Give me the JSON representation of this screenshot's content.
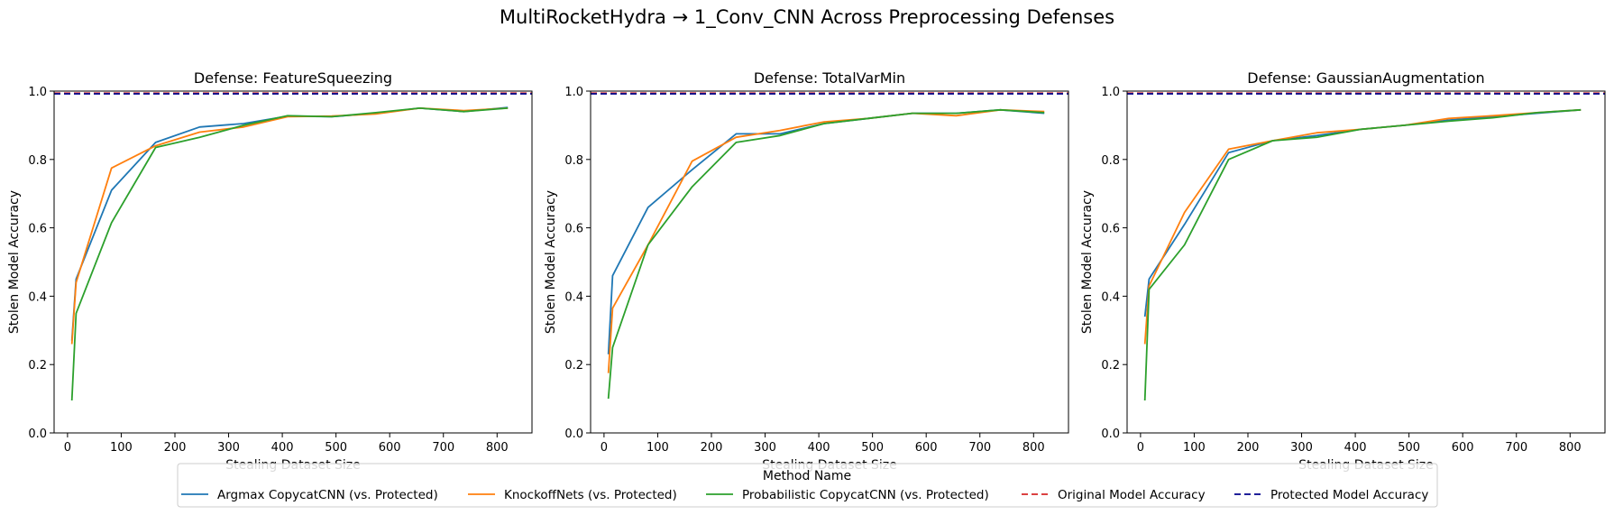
{
  "figure": {
    "title": "MultiRocketHydra → 1_Conv_CNN Across Preprocessing Defenses"
  },
  "legend": {
    "title": "Method Name",
    "entries": [
      {
        "label": "Argmax CopycatCNN (vs. Protected)",
        "color": "#1f77b4",
        "style": "solid"
      },
      {
        "label": "KnockoffNets (vs. Protected)",
        "color": "#ff7f0e",
        "style": "solid"
      },
      {
        "label": "Probabilistic CopycatCNN (vs. Protected)",
        "color": "#2ca02c",
        "style": "solid"
      },
      {
        "label": "Original Model Accuracy",
        "color": "#d62728",
        "style": "dashed"
      },
      {
        "label": "Protected Model Accuracy",
        "color": "#00008b",
        "style": "dashed"
      }
    ]
  },
  "chart_data": [
    {
      "type": "line",
      "title": "Defense: FeatureSqueezing",
      "xlabel": "Stealing Dataset Size",
      "ylabel": "Stolen Model Accuracy",
      "xlim": [
        -25,
        865
      ],
      "ylim": [
        0,
        1.0
      ],
      "xticks": [
        0,
        100,
        200,
        300,
        400,
        500,
        600,
        700,
        800
      ],
      "yticks": [
        0.0,
        0.2,
        0.4,
        0.6,
        0.8,
        1.0
      ],
      "hlines": [
        {
          "name": "Original Model Accuracy",
          "y": 0.994,
          "color": "#d62728"
        },
        {
          "name": "Protected Model Accuracy",
          "y": 0.992,
          "color": "#00008b"
        }
      ],
      "series": [
        {
          "name": "Argmax CopycatCNN (vs. Protected)",
          "color": "#1f77b4",
          "x": [
            8,
            16,
            82,
            164,
            246,
            328,
            410,
            492,
            574,
            656,
            738,
            820
          ],
          "y": [
            0.27,
            0.45,
            0.71,
            0.85,
            0.895,
            0.905,
            0.927,
            0.925,
            0.935,
            0.95,
            0.94,
            0.952
          ]
        },
        {
          "name": "KnockoffNets (vs. Protected)",
          "color": "#ff7f0e",
          "x": [
            8,
            16,
            82,
            164,
            246,
            328,
            410,
            492,
            574,
            656,
            738,
            820
          ],
          "y": [
            0.26,
            0.44,
            0.775,
            0.84,
            0.88,
            0.895,
            0.925,
            0.927,
            0.933,
            0.95,
            0.943,
            0.95
          ]
        },
        {
          "name": "Probabilistic CopycatCNN (vs. Protected)",
          "color": "#2ca02c",
          "x": [
            8,
            16,
            82,
            164,
            246,
            328,
            410,
            492,
            574,
            656,
            738,
            820
          ],
          "y": [
            0.095,
            0.35,
            0.615,
            0.835,
            0.865,
            0.9,
            0.928,
            0.925,
            0.937,
            0.95,
            0.94,
            0.95
          ]
        }
      ]
    },
    {
      "type": "line",
      "title": "Defense: TotalVarMin",
      "xlabel": "Stealing Dataset Size",
      "ylabel": "Stolen Model Accuracy",
      "xlim": [
        -25,
        865
      ],
      "ylim": [
        0,
        1.0
      ],
      "xticks": [
        0,
        100,
        200,
        300,
        400,
        500,
        600,
        700,
        800
      ],
      "yticks": [
        0.0,
        0.2,
        0.4,
        0.6,
        0.8,
        1.0
      ],
      "hlines": [
        {
          "name": "Original Model Accuracy",
          "y": 0.994,
          "color": "#d62728"
        },
        {
          "name": "Protected Model Accuracy",
          "y": 0.992,
          "color": "#00008b"
        }
      ],
      "series": [
        {
          "name": "Argmax CopycatCNN (vs. Protected)",
          "color": "#1f77b4",
          "x": [
            8,
            16,
            82,
            164,
            246,
            328,
            410,
            492,
            574,
            656,
            738,
            820
          ],
          "y": [
            0.23,
            0.46,
            0.66,
            0.77,
            0.875,
            0.875,
            0.905,
            0.92,
            0.935,
            0.935,
            0.945,
            0.935
          ]
        },
        {
          "name": "KnockoffNets (vs. Protected)",
          "color": "#ff7f0e",
          "x": [
            8,
            16,
            82,
            164,
            246,
            328,
            410,
            492,
            574,
            656,
            738,
            820
          ],
          "y": [
            0.175,
            0.365,
            0.55,
            0.795,
            0.865,
            0.885,
            0.91,
            0.92,
            0.935,
            0.928,
            0.945,
            0.94
          ]
        },
        {
          "name": "Probabilistic CopycatCNN (vs. Protected)",
          "color": "#2ca02c",
          "x": [
            8,
            16,
            82,
            164,
            246,
            328,
            410,
            492,
            574,
            656,
            738,
            820
          ],
          "y": [
            0.1,
            0.25,
            0.55,
            0.72,
            0.85,
            0.87,
            0.905,
            0.92,
            0.935,
            0.935,
            0.945,
            0.937
          ]
        }
      ]
    },
    {
      "type": "line",
      "title": "Defense: GaussianAugmentation",
      "xlabel": "Stealing Dataset Size",
      "ylabel": "Stolen Model Accuracy",
      "xlim": [
        -25,
        865
      ],
      "ylim": [
        0,
        1.0
      ],
      "xticks": [
        0,
        100,
        200,
        300,
        400,
        500,
        600,
        700,
        800
      ],
      "yticks": [
        0.0,
        0.2,
        0.4,
        0.6,
        0.8,
        1.0
      ],
      "hlines": [
        {
          "name": "Original Model Accuracy",
          "y": 0.994,
          "color": "#d62728"
        },
        {
          "name": "Protected Model Accuracy",
          "y": 0.992,
          "color": "#00008b"
        }
      ],
      "series": [
        {
          "name": "Argmax CopycatCNN (vs. Protected)",
          "color": "#1f77b4",
          "x": [
            8,
            16,
            82,
            164,
            246,
            328,
            410,
            492,
            574,
            656,
            738,
            820
          ],
          "y": [
            0.34,
            0.45,
            0.61,
            0.82,
            0.855,
            0.87,
            0.888,
            0.9,
            0.915,
            0.925,
            0.935,
            0.945
          ]
        },
        {
          "name": "KnockoffNets (vs. Protected)",
          "color": "#ff7f0e",
          "x": [
            8,
            16,
            82,
            164,
            246,
            328,
            410,
            492,
            574,
            656,
            738,
            820
          ],
          "y": [
            0.26,
            0.43,
            0.645,
            0.83,
            0.855,
            0.878,
            0.888,
            0.9,
            0.92,
            0.928,
            0.937,
            0.945
          ]
        },
        {
          "name": "Probabilistic CopycatCNN (vs. Protected)",
          "color": "#2ca02c",
          "x": [
            8,
            16,
            82,
            164,
            246,
            328,
            410,
            492,
            574,
            656,
            738,
            820
          ],
          "y": [
            0.095,
            0.42,
            0.55,
            0.8,
            0.855,
            0.865,
            0.888,
            0.9,
            0.912,
            0.922,
            0.937,
            0.945
          ]
        }
      ]
    }
  ]
}
